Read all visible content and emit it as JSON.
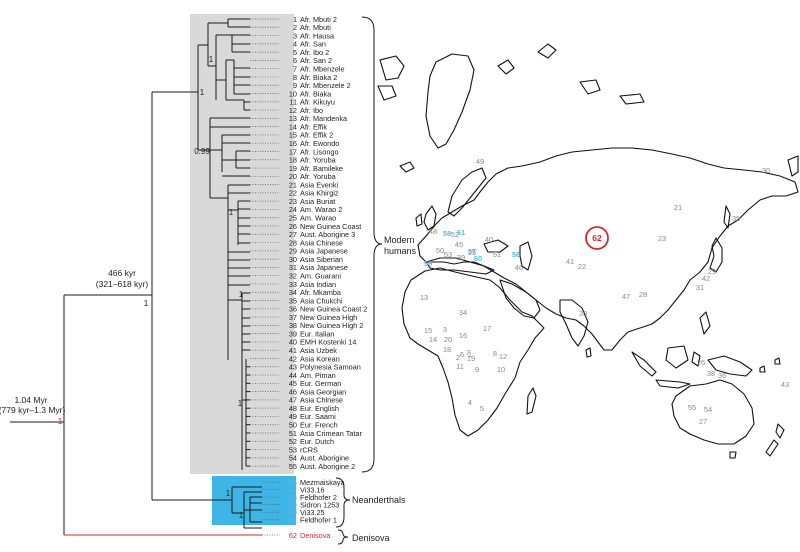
{
  "tree": {
    "root_age": "1.04 Myr",
    "root_ci": "(779 kyr–1.3 Myr)",
    "root_support": "1",
    "modern_age": "466 kyr",
    "modern_ci": "(321–618 kyr)",
    "modern_support": "1",
    "inner_supports": [
      "1",
      "0.99",
      "1",
      "1",
      "1",
      "1"
    ],
    "neanderthal_supports": [
      "1",
      "1"
    ]
  },
  "groups": {
    "modern": [
      "Modern",
      "humans"
    ],
    "neanderthal": "Neanderthals",
    "denisova": "Denisova"
  },
  "leaves": [
    {
      "n": "1",
      "label": "Afr. Mbuti 2"
    },
    {
      "n": "2",
      "label": "Afr. Mbuti"
    },
    {
      "n": "3",
      "label": "Afr. Hausa"
    },
    {
      "n": "4",
      "label": "Afr. San"
    },
    {
      "n": "5",
      "label": "Afr. Ibo 2"
    },
    {
      "n": "6",
      "label": "Afr. San 2"
    },
    {
      "n": "7",
      "label": "Afr. Mbenzele"
    },
    {
      "n": "8",
      "label": "Afr. Biaka 2"
    },
    {
      "n": "9",
      "label": "Afr. Mbenzele 2"
    },
    {
      "n": "10",
      "label": "Afr. Biaka"
    },
    {
      "n": "11",
      "label": "Afr. Kikuyu"
    },
    {
      "n": "12",
      "label": "Afr. Ibo"
    },
    {
      "n": "13",
      "label": "Afr. Mandenka"
    },
    {
      "n": "14",
      "label": "Afr. Effik"
    },
    {
      "n": "15",
      "label": "Afr. Effik 2"
    },
    {
      "n": "16",
      "label": "Afr. Ewondo"
    },
    {
      "n": "17",
      "label": "Afr. Lisongo"
    },
    {
      "n": "18",
      "label": "Afr. Yoruba"
    },
    {
      "n": "19",
      "label": "Afr. Bamileke"
    },
    {
      "n": "20",
      "label": "Afr. Yoruba"
    },
    {
      "n": "21",
      "label": "Asia Evenki"
    },
    {
      "n": "22",
      "label": "Asia Khirgiz"
    },
    {
      "n": "23",
      "label": "Asia Buriat"
    },
    {
      "n": "24",
      "label": "Am. Warao 2"
    },
    {
      "n": "25",
      "label": "Am. Warao"
    },
    {
      "n": "26",
      "label": "New Guinea Coast"
    },
    {
      "n": "27",
      "label": "Aust. Aborigine 3"
    },
    {
      "n": "28",
      "label": "Asia Chinese"
    },
    {
      "n": "29",
      "label": "Asia Japanese"
    },
    {
      "n": "30",
      "label": "Asia Siberian"
    },
    {
      "n": "31",
      "label": "Asia Japanese"
    },
    {
      "n": "32",
      "label": "Am. Guarani"
    },
    {
      "n": "33",
      "label": "Asia Indian"
    },
    {
      "n": "34",
      "label": "Afr. Mkamba"
    },
    {
      "n": "35",
      "label": "Asia Chukchi"
    },
    {
      "n": "36",
      "label": "New Guinea Coast 2"
    },
    {
      "n": "37",
      "label": "New Guinea High"
    },
    {
      "n": "38",
      "label": "New Guinea High 2"
    },
    {
      "n": "39",
      "label": "Eur. Italian"
    },
    {
      "n": "40",
      "label": "EMH Kostenki 14"
    },
    {
      "n": "41",
      "label": "Asia Uzbek"
    },
    {
      "n": "42",
      "label": "Asia Korean"
    },
    {
      "n": "43",
      "label": "Polynesia Samoan"
    },
    {
      "n": "44",
      "label": "Am. Piman"
    },
    {
      "n": "45",
      "label": "Eur. German"
    },
    {
      "n": "46",
      "label": "Asia Georgian"
    },
    {
      "n": "47",
      "label": "Asia Chinese"
    },
    {
      "n": "48",
      "label": "Eur. English"
    },
    {
      "n": "49",
      "label": "Eur. Saami"
    },
    {
      "n": "50",
      "label": "Eur. French"
    },
    {
      "n": "51",
      "label": "Asia Crimean Tatar"
    },
    {
      "n": "52",
      "label": "Eur. Dutch"
    },
    {
      "n": "53",
      "label": "rCRS"
    },
    {
      "n": "54",
      "label": "Aust. Aborigine"
    },
    {
      "n": "55",
      "label": "Aust. Aborigine 2"
    },
    {
      "n": "56",
      "label": "Mezmaiskaya"
    },
    {
      "n": "57",
      "label": "Vi33.16"
    },
    {
      "n": "58",
      "label": "Feldhofer 2"
    },
    {
      "n": "59",
      "label": "Sidron 1253"
    },
    {
      "n": "60",
      "label": "Vi33.25"
    },
    {
      "n": "61",
      "label": "Feldhofer 1"
    },
    {
      "n": "62",
      "label": "Denisova"
    }
  ],
  "map_labels": {
    "modern": [
      "1",
      "2",
      "3",
      "4",
      "5",
      "6",
      "7",
      "8",
      "9",
      "10",
      "11",
      "12",
      "13",
      "14",
      "15",
      "16",
      "17",
      "18",
      "19",
      "20",
      "21",
      "22",
      "23",
      "25",
      "26",
      "27",
      "28",
      "29",
      "30",
      "31",
      "33",
      "34",
      "35",
      "36",
      "38",
      "39",
      "40",
      "41",
      "42",
      "43",
      "45",
      "46",
      "47",
      "48",
      "49",
      "50",
      "51",
      "52",
      "53",
      "54",
      "55"
    ],
    "neanderthal": [
      "56",
      "57",
      "58",
      "59",
      "60",
      "61"
    ],
    "denisova": "62"
  },
  "colors": {
    "modern_box": "#d9d9d9",
    "neanderthal_box": "#3fb5e6",
    "neanderthal_text": "#5ab9e3",
    "denisova": "#d8262b",
    "modern_map_label": "#8a8a8a",
    "line": "#1a1a1a"
  }
}
